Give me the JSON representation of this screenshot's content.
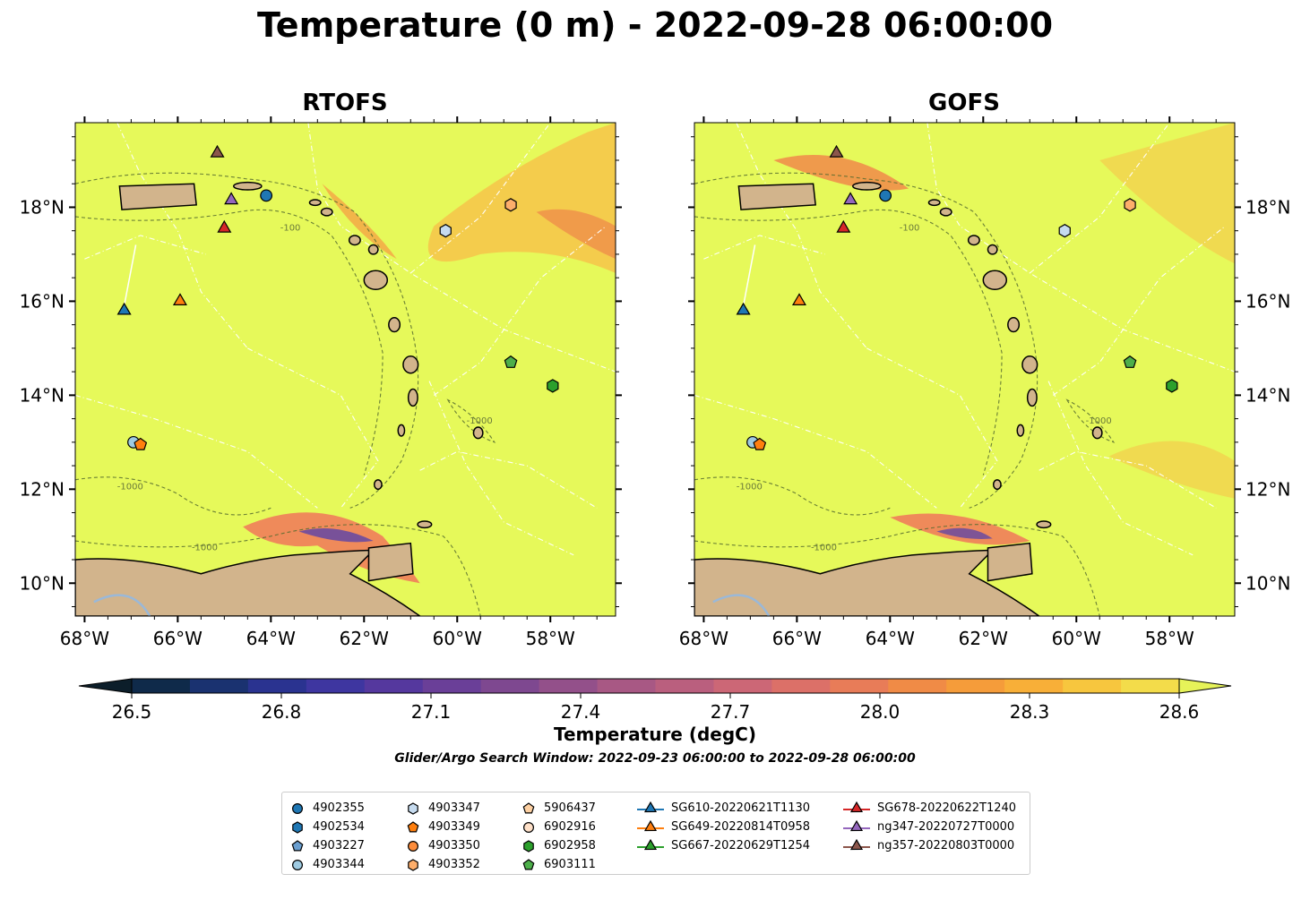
{
  "title": "Temperature (0 m) - 2022-09-28 06:00:00",
  "panels": [
    {
      "title": "RTOFS"
    },
    {
      "title": "GOFS"
    }
  ],
  "axes": {
    "lon_ticks": [
      "68°W",
      "66°W",
      "64°W",
      "62°W",
      "60°W",
      "58°W"
    ],
    "lat_ticks": [
      "18°N",
      "16°N",
      "14°N",
      "12°N",
      "10°N"
    ]
  },
  "contour_labels": [
    "-100",
    "-1000"
  ],
  "colorbar": {
    "label": "Temperature (degC)",
    "ticks": [
      "26.5",
      "26.8",
      "27.1",
      "27.4",
      "27.7",
      "28.0",
      "28.3",
      "28.6"
    ],
    "range": [
      26.5,
      28.6
    ],
    "colormap": [
      "#0c1e2a",
      "#0f2a4a",
      "#1a3270",
      "#2a3390",
      "#3e36a0",
      "#55389e",
      "#6a3f98",
      "#7e4890",
      "#93508a",
      "#a85884",
      "#ba5f7e",
      "#cc6776",
      "#dc7068",
      "#e87c58",
      "#f08b46",
      "#f59c3a",
      "#f8af38",
      "#f7c63e",
      "#f3dc4a",
      "#e6f359"
    ]
  },
  "search_window": "Glider/Argo Search Window: 2022-09-23 06:00:00 to 2022-09-28 06:00:00",
  "legend": {
    "entries": [
      {
        "label": "4902355",
        "marker": "circle",
        "color": "#1f77b4"
      },
      {
        "label": "4902534",
        "marker": "hexagon",
        "color": "#1f77b4"
      },
      {
        "label": "4903227",
        "marker": "pentagon",
        "color": "#6a9fd0"
      },
      {
        "label": "4903344",
        "marker": "circle",
        "color": "#9ecae1"
      },
      {
        "label": "4903347",
        "marker": "hexagon",
        "color": "#c6dbef"
      },
      {
        "label": "4903349",
        "marker": "pentagon",
        "color": "#ff7f0e"
      },
      {
        "label": "4903350",
        "marker": "circle",
        "color": "#fd8d3c"
      },
      {
        "label": "4903352",
        "marker": "hexagon",
        "color": "#fdae6b"
      },
      {
        "label": "5906437",
        "marker": "pentagon",
        "color": "#fdd0a2"
      },
      {
        "label": "6902916",
        "marker": "circle",
        "color": "#fee0c8"
      },
      {
        "label": "6902958",
        "marker": "hexagon",
        "color": "#2ca02c"
      },
      {
        "label": "6903111",
        "marker": "pentagon",
        "color": "#4daf4a"
      },
      {
        "label": "SG610-20220621T1130",
        "marker": "triangle",
        "color": "#1f77b4"
      },
      {
        "label": "SG649-20220814T0958",
        "marker": "triangle",
        "color": "#ff7f0e"
      },
      {
        "label": "SG667-20220629T1254",
        "marker": "triangle",
        "color": "#2ca02c"
      },
      {
        "label": "SG678-20220622T1240",
        "marker": "triangle",
        "color": "#d62728"
      },
      {
        "label": "ng347-20220727T0000",
        "marker": "triangle",
        "color": "#9467bd"
      },
      {
        "label": "ng357-20220803T0000",
        "marker": "triangle",
        "color": "#8c564b"
      }
    ]
  },
  "map": {
    "lon_range": [
      -68.2,
      -56.6
    ],
    "lat_range": [
      9.3,
      19.8
    ],
    "ocean_color": "#e6f95a",
    "land_color": "#d2b48c",
    "observations": [
      {
        "id": "4902355",
        "lon": -64.1,
        "lat": 18.25
      },
      {
        "id": "4903347",
        "lon": -60.25,
        "lat": 17.5
      },
      {
        "id": "4903352",
        "lon": -58.85,
        "lat": 18.05
      },
      {
        "id": "6903111",
        "lon": -58.85,
        "lat": 14.7
      },
      {
        "id": "6902958",
        "lon": -57.95,
        "lat": 14.2
      },
      {
        "id": "4903344",
        "lon": -66.95,
        "lat": 13.0
      },
      {
        "id": "4903349",
        "lon": -66.8,
        "lat": 12.95
      },
      {
        "id": "SG610-20220621T1130",
        "lon": -67.15,
        "lat": 15.8
      },
      {
        "id": "SG649-20220814T0958",
        "lon": -65.95,
        "lat": 16.0
      },
      {
        "id": "SG678-20220622T1240",
        "lon": -65.0,
        "lat": 17.55
      },
      {
        "id": "ng347-20220727T0000",
        "lon": -64.85,
        "lat": 18.15
      },
      {
        "id": "ng357-20220803T0000",
        "lon": -65.15,
        "lat": 19.15
      }
    ]
  }
}
